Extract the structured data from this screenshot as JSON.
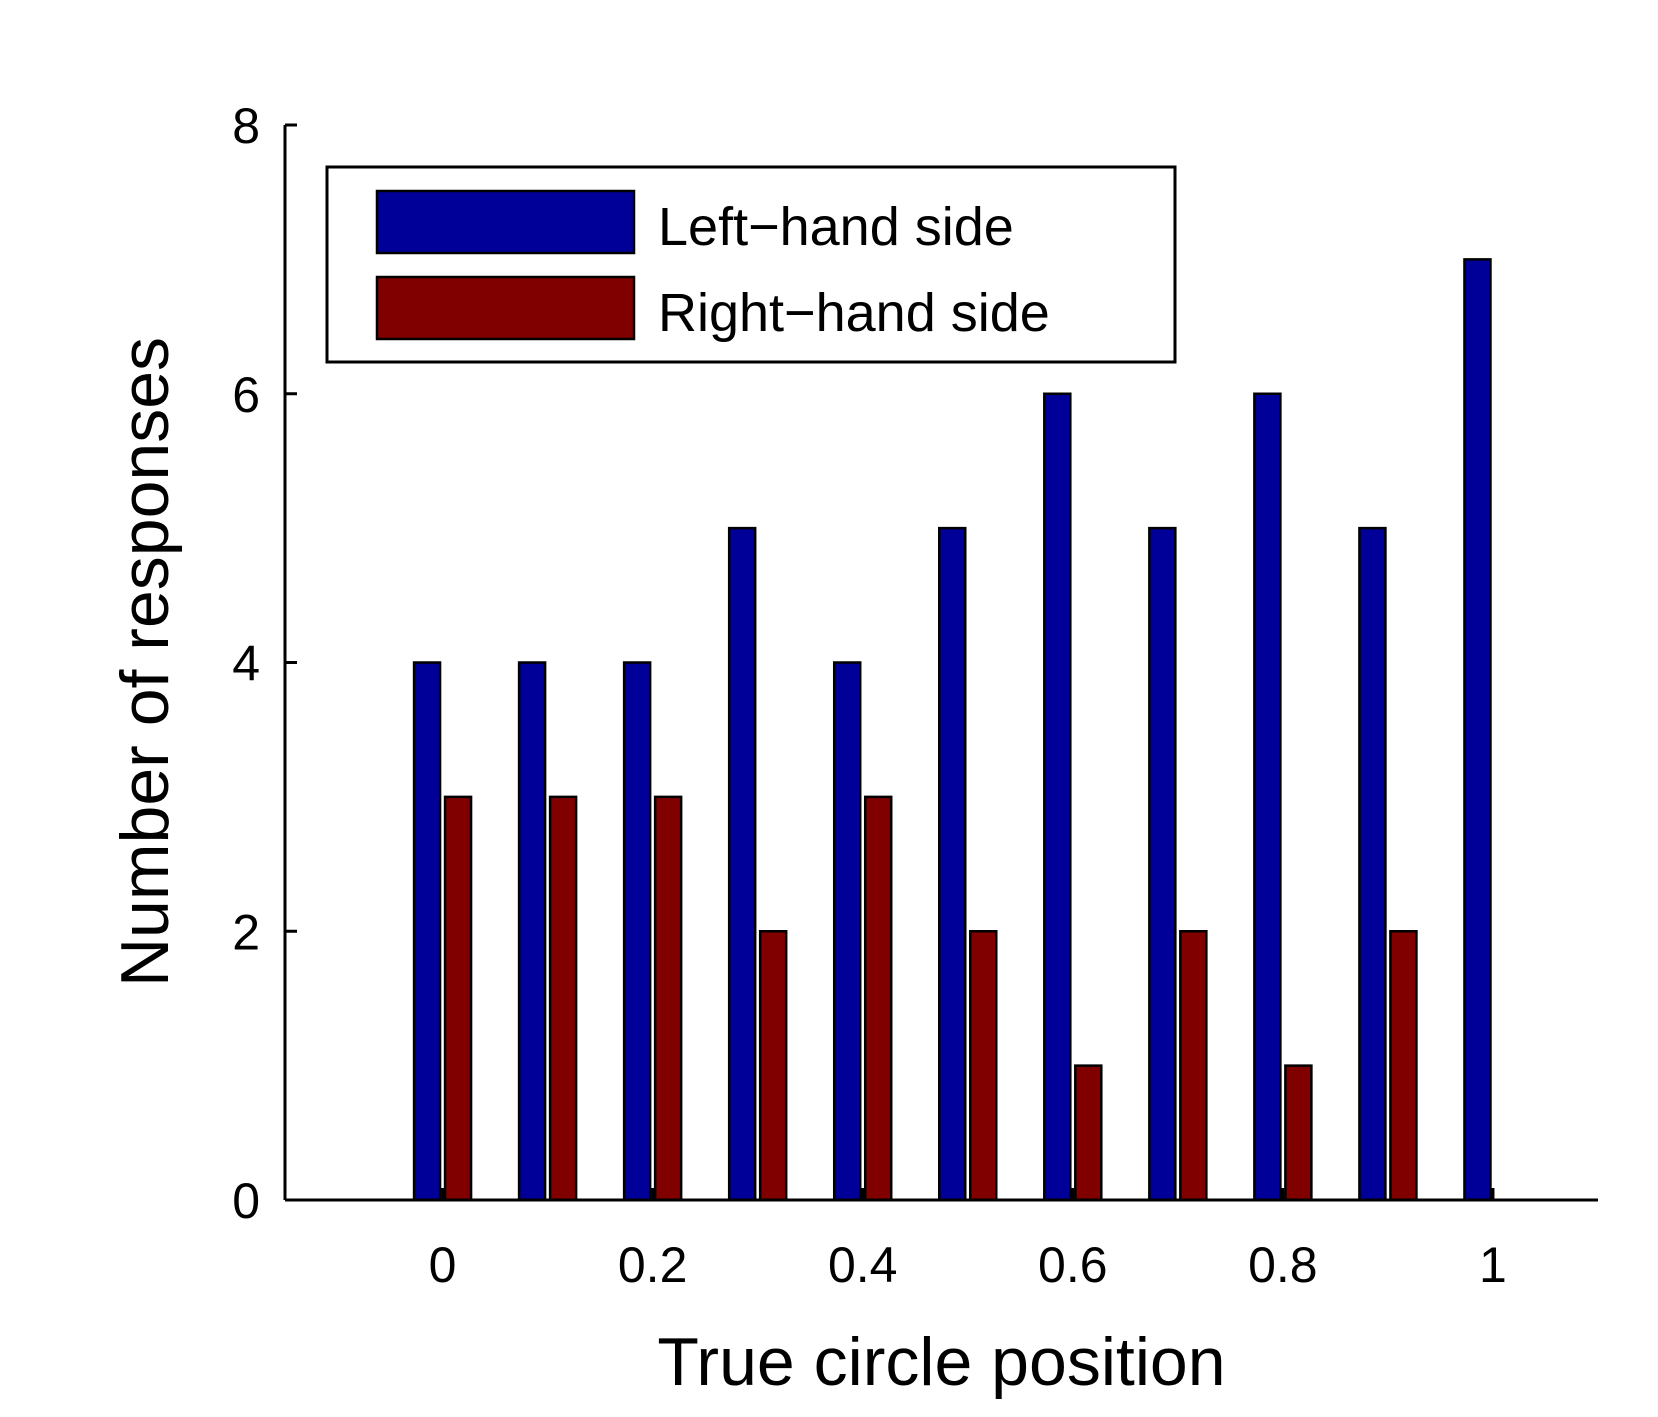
{
  "chart_data": {
    "type": "bar",
    "x": [
      0,
      0.1,
      0.2,
      0.3,
      0.4,
      0.5,
      0.6,
      0.7,
      0.8,
      0.9,
      1.0
    ],
    "series": [
      {
        "name": "Left−hand side",
        "color": "#000099",
        "values": [
          4,
          4,
          4,
          5,
          4,
          5,
          6,
          5,
          6,
          5,
          7
        ]
      },
      {
        "name": "Right−hand side",
        "color": "#800000",
        "values": [
          3,
          3,
          3,
          2,
          3,
          2,
          1,
          2,
          1,
          2,
          0
        ]
      }
    ],
    "xlabel": "True circle position",
    "ylabel": "Number of responses",
    "xlim": [
      -0.15,
      1.1
    ],
    "ylim": [
      0,
      8
    ],
    "xticks": [
      0,
      0.2,
      0.4,
      0.6,
      0.8,
      1
    ],
    "xtick_labels": [
      "0",
      "0.2",
      "0.4",
      "0.6",
      "0.8",
      "1"
    ],
    "yticks": [
      0,
      2,
      4,
      6,
      8
    ],
    "ytick_labels": [
      "0",
      "2",
      "4",
      "6",
      "8"
    ],
    "grid": false,
    "legend_position": "top-left"
  }
}
